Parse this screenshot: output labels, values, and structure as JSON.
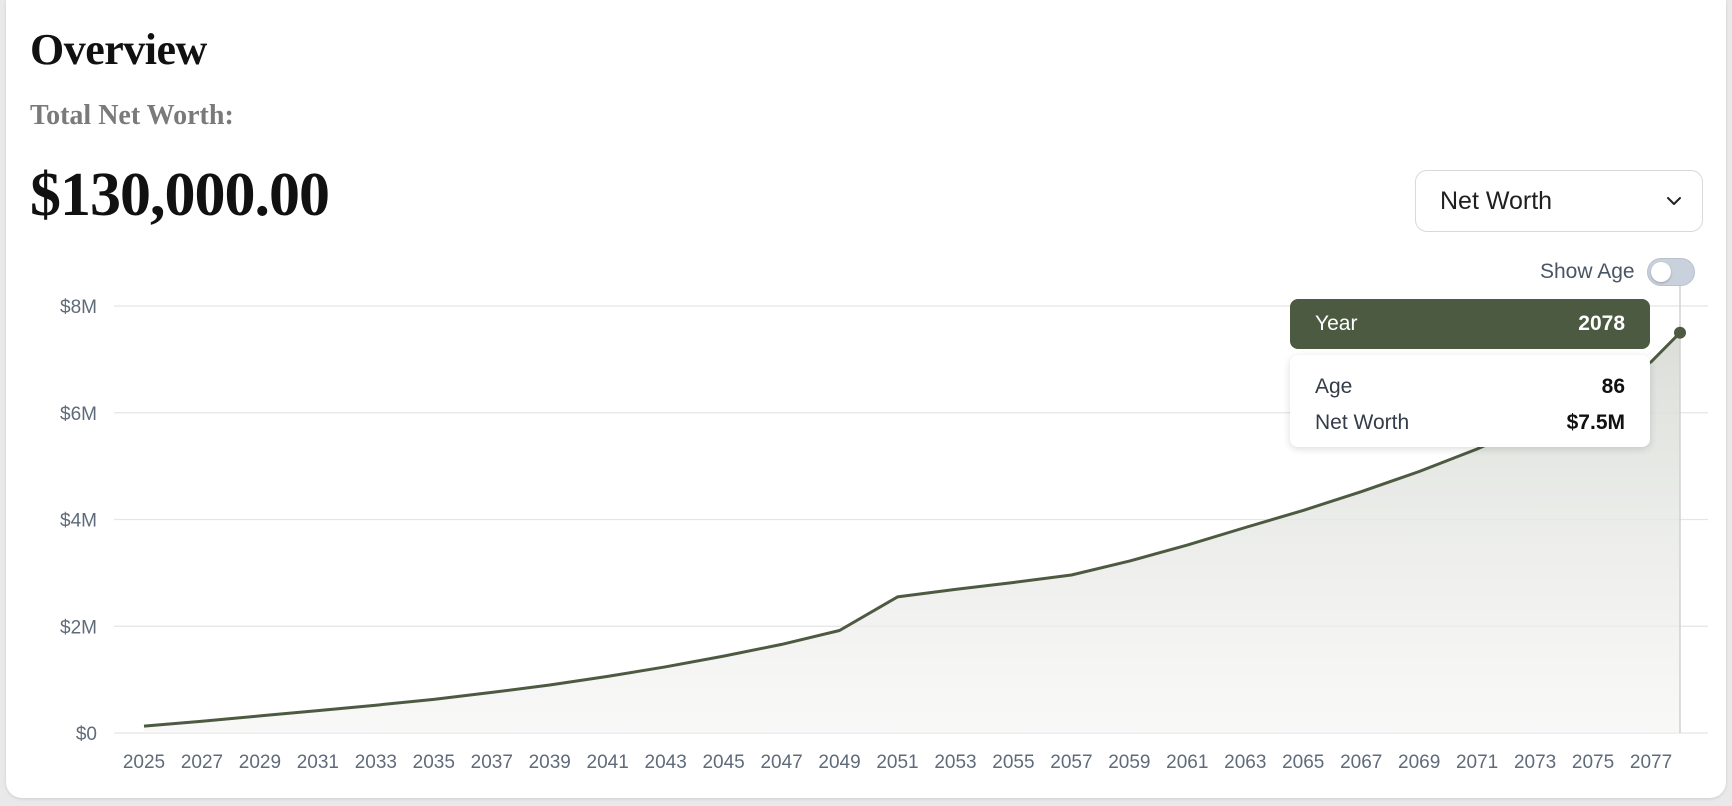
{
  "header": {
    "title": "Overview",
    "subtitle": "Total Net Worth:",
    "amount": "$130,000.00"
  },
  "controls": {
    "metric_select": {
      "selected": "Net Worth",
      "icon": "chevron-down-icon"
    },
    "show_age": {
      "label": "Show Age",
      "on": false
    }
  },
  "tooltip": {
    "year_label": "Year",
    "year_value": "2078",
    "rows": [
      {
        "label": "Age",
        "value": "86"
      },
      {
        "label": "Net Worth",
        "value": "$7.5M"
      }
    ]
  },
  "colors": {
    "line": "#4d5a42",
    "tooltip_header": "#4d5a42",
    "grid": "#e5e5e5"
  },
  "chart_data": {
    "type": "area",
    "title": "",
    "xlabel": "",
    "ylabel": "",
    "grid": true,
    "x": [
      2025,
      2027,
      2029,
      2031,
      2033,
      2035,
      2037,
      2039,
      2041,
      2043,
      2045,
      2047,
      2049,
      2051,
      2053,
      2055,
      2057,
      2059,
      2061,
      2063,
      2065,
      2067,
      2069,
      2071,
      2073,
      2075,
      2077,
      2078
    ],
    "series": [
      {
        "values": [
          0.13,
          0.22,
          0.32,
          0.42,
          0.52,
          0.63,
          0.76,
          0.9,
          1.06,
          1.24,
          1.44,
          1.66,
          1.92,
          2.55,
          2.69,
          2.82,
          2.96,
          3.22,
          3.52,
          3.85,
          4.17,
          4.52,
          4.9,
          5.32,
          5.8,
          6.35,
          6.95,
          7.5
        ]
      }
    ],
    "x_ticks": [
      "2025",
      "2027",
      "2029",
      "2031",
      "2033",
      "2035",
      "2037",
      "2039",
      "2041",
      "2043",
      "2045",
      "2047",
      "2049",
      "2051",
      "2053",
      "2055",
      "2057",
      "2059",
      "2061",
      "2063",
      "2065",
      "2067",
      "2069",
      "2071",
      "2073",
      "2075",
      "2077"
    ],
    "y_ticks": [
      {
        "value": 0,
        "label": "$0"
      },
      {
        "value": 2,
        "label": "$2M"
      },
      {
        "value": 4,
        "label": "$4M"
      },
      {
        "value": 6,
        "label": "$6M"
      },
      {
        "value": 8,
        "label": "$8M"
      }
    ],
    "xlim": [
      2025,
      2078
    ],
    "ylim": [
      0,
      8
    ],
    "highlight": {
      "x": 2078,
      "y": 7.5
    }
  }
}
